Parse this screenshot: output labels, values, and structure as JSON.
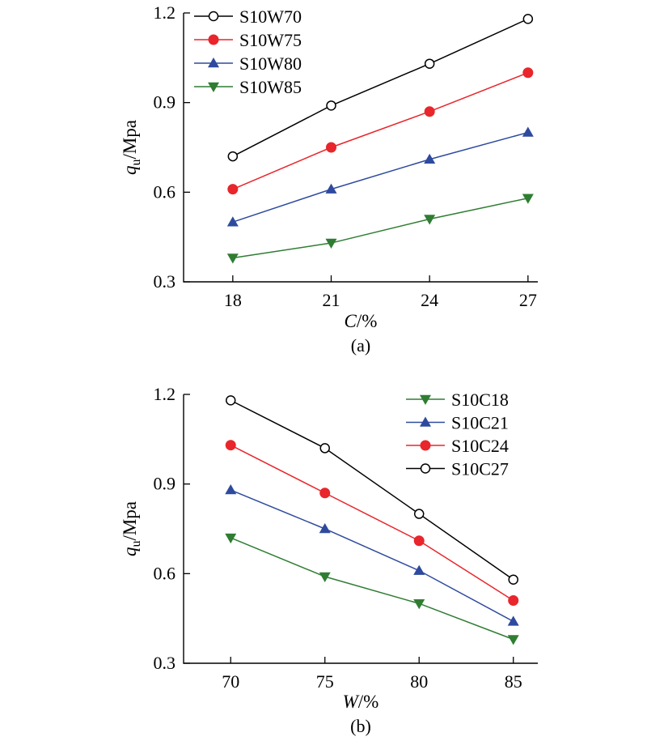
{
  "chart_data": [
    {
      "type": "line",
      "panel_label": "(a)",
      "xlabel_var": "C",
      "xlabel_unit": "/%",
      "ylabel_var": "q",
      "ylabel_sub": "u",
      "ylabel_unit": "/Mpa",
      "x": [
        18,
        21,
        24,
        27
      ],
      "x_ticks": [
        "18",
        "21",
        "24",
        "27"
      ],
      "y_ticks": [
        "0.3",
        "0.6",
        "0.9",
        "1.2"
      ],
      "xlim": [
        16.5,
        27.3
      ],
      "ylim": [
        0.3,
        1.2
      ],
      "legend_position": "top-left",
      "series": [
        {
          "name": "S10W70",
          "marker": "circle-open",
          "color": "#000000",
          "values": [
            0.72,
            0.89,
            1.03,
            1.18
          ]
        },
        {
          "name": "S10W75",
          "marker": "circle",
          "color": "#e8262b",
          "values": [
            0.61,
            0.75,
            0.87,
            1.0
          ]
        },
        {
          "name": "S10W80",
          "marker": "triangle-up",
          "color": "#2e4a9e",
          "values": [
            0.5,
            0.61,
            0.71,
            0.8
          ]
        },
        {
          "name": "S10W85",
          "marker": "triangle-down",
          "color": "#2f7d32",
          "values": [
            0.38,
            0.43,
            0.51,
            0.58
          ]
        }
      ]
    },
    {
      "type": "line",
      "panel_label": "(b)",
      "xlabel_var": "W",
      "xlabel_unit": "/%",
      "ylabel_var": "q",
      "ylabel_sub": "u",
      "ylabel_unit": "/Mpa",
      "x": [
        70,
        75,
        80,
        85
      ],
      "x_ticks": [
        "70",
        "75",
        "80",
        "85"
      ],
      "y_ticks": [
        "0.3",
        "0.6",
        "0.9",
        "1.2"
      ],
      "xlim": [
        67.5,
        86.3
      ],
      "ylim": [
        0.3,
        1.2
      ],
      "legend_position": "top-right",
      "series": [
        {
          "name": "S10C18",
          "marker": "triangle-down",
          "color": "#2f7d32",
          "values": [
            0.72,
            0.59,
            0.5,
            0.38
          ]
        },
        {
          "name": "S10C21",
          "marker": "triangle-up",
          "color": "#2e4a9e",
          "values": [
            0.88,
            0.75,
            0.61,
            0.44
          ]
        },
        {
          "name": "S10C24",
          "marker": "circle",
          "color": "#e8262b",
          "values": [
            1.03,
            0.87,
            0.71,
            0.51
          ]
        },
        {
          "name": "S10C27",
          "marker": "circle-open",
          "color": "#000000",
          "values": [
            1.18,
            1.02,
            0.8,
            0.58
          ]
        }
      ]
    }
  ]
}
